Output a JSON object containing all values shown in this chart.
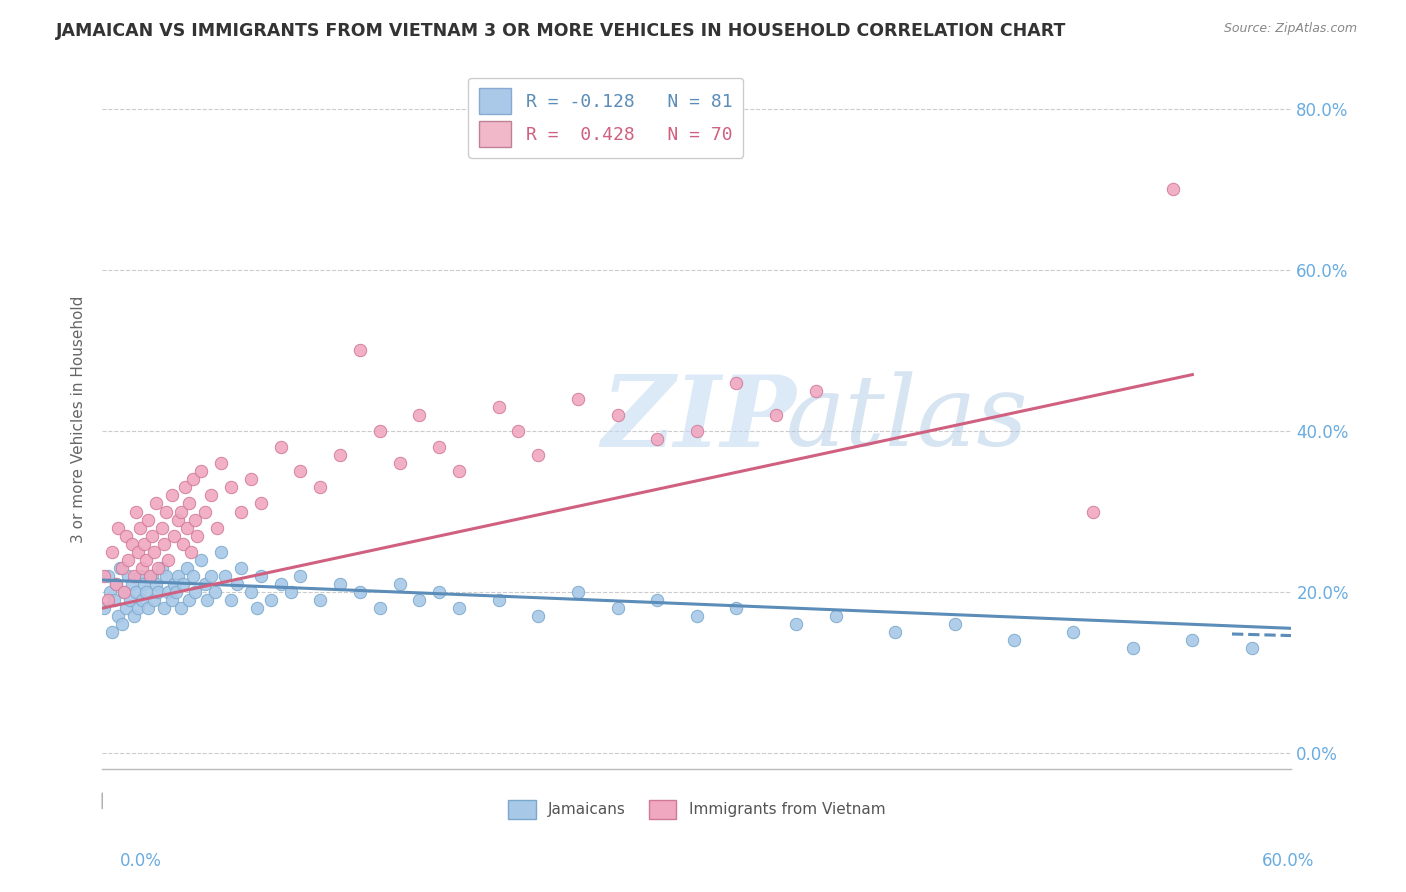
{
  "title": "JAMAICAN VS IMMIGRANTS FROM VIETNAM 3 OR MORE VEHICLES IN HOUSEHOLD CORRELATION CHART",
  "source": "Source: ZipAtlas.com",
  "ylabel": "3 or more Vehicles in Household",
  "xlim": [
    0.0,
    0.6
  ],
  "ylim": [
    -0.02,
    0.85
  ],
  "yticks": [
    0.0,
    0.2,
    0.4,
    0.6,
    0.8
  ],
  "ytick_labels": [
    "0.0%",
    "20.0%",
    "40.0%",
    "60.0%",
    "80.0%"
  ],
  "background_color": "#ffffff",
  "grid_color": "#cccccc",
  "watermark_zip": "ZIP",
  "watermark_atlas": "atlas",
  "legend_top": [
    {
      "R": "-0.128",
      "N": "81",
      "patch_color": "#aac8e8",
      "text_color": "#5b8db8"
    },
    {
      "R": " 0.428",
      "N": "70",
      "patch_color": "#f0b8c8",
      "text_color": "#d06080"
    }
  ],
  "jamaicans": {
    "scatter_color": "#a8c8e8",
    "scatter_edge": "#7aa8cc",
    "line_color": "#5b8db8",
    "line_style": "-",
    "x": [
      0.001,
      0.003,
      0.004,
      0.005,
      0.006,
      0.007,
      0.008,
      0.009,
      0.01,
      0.011,
      0.012,
      0.013,
      0.014,
      0.015,
      0.016,
      0.017,
      0.018,
      0.019,
      0.02,
      0.021,
      0.022,
      0.023,
      0.025,
      0.026,
      0.027,
      0.028,
      0.03,
      0.031,
      0.032,
      0.033,
      0.035,
      0.036,
      0.037,
      0.038,
      0.04,
      0.041,
      0.043,
      0.044,
      0.046,
      0.047,
      0.05,
      0.052,
      0.053,
      0.055,
      0.057,
      0.06,
      0.062,
      0.065,
      0.068,
      0.07,
      0.075,
      0.078,
      0.08,
      0.085,
      0.09,
      0.095,
      0.1,
      0.11,
      0.12,
      0.13,
      0.14,
      0.15,
      0.16,
      0.17,
      0.18,
      0.2,
      0.22,
      0.24,
      0.26,
      0.28,
      0.3,
      0.32,
      0.35,
      0.37,
      0.4,
      0.43,
      0.46,
      0.49,
      0.52,
      0.55,
      0.58
    ],
    "y": [
      0.18,
      0.22,
      0.2,
      0.15,
      0.19,
      0.21,
      0.17,
      0.23,
      0.16,
      0.2,
      0.18,
      0.22,
      0.19,
      0.21,
      0.17,
      0.2,
      0.18,
      0.22,
      0.19,
      0.21,
      0.2,
      0.18,
      0.22,
      0.19,
      0.21,
      0.2,
      0.23,
      0.18,
      0.22,
      0.2,
      0.19,
      0.21,
      0.2,
      0.22,
      0.18,
      0.21,
      0.23,
      0.19,
      0.22,
      0.2,
      0.24,
      0.21,
      0.19,
      0.22,
      0.2,
      0.25,
      0.22,
      0.19,
      0.21,
      0.23,
      0.2,
      0.18,
      0.22,
      0.19,
      0.21,
      0.2,
      0.22,
      0.19,
      0.21,
      0.2,
      0.18,
      0.21,
      0.19,
      0.2,
      0.18,
      0.19,
      0.17,
      0.2,
      0.18,
      0.19,
      0.17,
      0.18,
      0.16,
      0.17,
      0.15,
      0.16,
      0.14,
      0.15,
      0.13,
      0.14,
      0.13
    ],
    "trend_x": [
      0.0,
      0.6
    ],
    "trend_y": [
      0.215,
      0.155
    ]
  },
  "vietnam": {
    "scatter_color": "#f0a8c0",
    "scatter_edge": "#d07898",
    "line_color": "#d06080",
    "line_style": "-",
    "x": [
      0.001,
      0.003,
      0.005,
      0.007,
      0.008,
      0.01,
      0.011,
      0.012,
      0.013,
      0.015,
      0.016,
      0.017,
      0.018,
      0.019,
      0.02,
      0.021,
      0.022,
      0.023,
      0.024,
      0.025,
      0.026,
      0.027,
      0.028,
      0.03,
      0.031,
      0.032,
      0.033,
      0.035,
      0.036,
      0.038,
      0.04,
      0.041,
      0.042,
      0.043,
      0.044,
      0.045,
      0.046,
      0.047,
      0.048,
      0.05,
      0.052,
      0.055,
      0.058,
      0.06,
      0.065,
      0.07,
      0.075,
      0.08,
      0.09,
      0.1,
      0.11,
      0.12,
      0.13,
      0.14,
      0.15,
      0.16,
      0.17,
      0.18,
      0.2,
      0.21,
      0.22,
      0.24,
      0.26,
      0.28,
      0.3,
      0.32,
      0.34,
      0.36,
      0.5,
      0.54
    ],
    "y": [
      0.22,
      0.19,
      0.25,
      0.21,
      0.28,
      0.23,
      0.2,
      0.27,
      0.24,
      0.26,
      0.22,
      0.3,
      0.25,
      0.28,
      0.23,
      0.26,
      0.24,
      0.29,
      0.22,
      0.27,
      0.25,
      0.31,
      0.23,
      0.28,
      0.26,
      0.3,
      0.24,
      0.32,
      0.27,
      0.29,
      0.3,
      0.26,
      0.33,
      0.28,
      0.31,
      0.25,
      0.34,
      0.29,
      0.27,
      0.35,
      0.3,
      0.32,
      0.28,
      0.36,
      0.33,
      0.3,
      0.34,
      0.31,
      0.38,
      0.35,
      0.33,
      0.37,
      0.5,
      0.4,
      0.36,
      0.42,
      0.38,
      0.35,
      0.43,
      0.4,
      0.37,
      0.44,
      0.42,
      0.39,
      0.4,
      0.46,
      0.42,
      0.45,
      0.3,
      0.7
    ],
    "trend_x": [
      0.0,
      0.55
    ],
    "trend_y": [
      0.18,
      0.47
    ]
  }
}
